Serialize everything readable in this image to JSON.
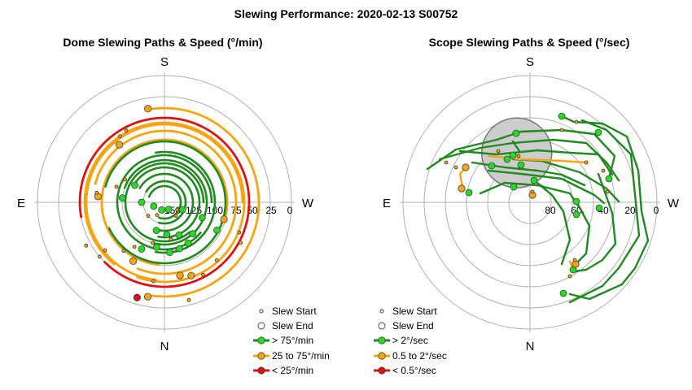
{
  "title": "Slewing Performance: 2020-02-13 S00752",
  "colors": {
    "fast": "#1f8a1f",
    "fast_fill": "#22dd22",
    "medium": "#f5a512",
    "medium_fill": "#f5a512",
    "slow": "#dd1111",
    "grid": "#b0b0b0",
    "blocked": "#cccccc"
  },
  "chart_data": [
    {
      "type": "polar-scatter-path",
      "title": "Dome Slewing Paths & Speed (°/min)",
      "compass": {
        "top": "S",
        "bottom": "N",
        "left": "E",
        "right": "W"
      },
      "radial_tick_labels": [
        "150",
        "125",
        "100",
        "75",
        "50",
        "25",
        "0"
      ],
      "radial_range": [
        150,
        0
      ],
      "legend": [
        {
          "symbol": "start",
          "label": "Slew Start"
        },
        {
          "symbol": "end",
          "label": "Slew End"
        },
        {
          "symbol": "fast",
          "label": "> 75°/min"
        },
        {
          "symbol": "medium",
          "label": "25 to 75°/min"
        },
        {
          "symbol": "slow",
          "label": "< 25°/min"
        }
      ],
      "paths": [
        {
          "speed": "medium",
          "r": 116,
          "from": 190,
          "to": 350,
          "dir": -1
        },
        {
          "speed": "medium",
          "r": 96,
          "from": 186,
          "to": 90,
          "dir": 1
        },
        {
          "speed": "medium",
          "r": 77,
          "from": 185,
          "to": 105,
          "dir": 1
        },
        {
          "speed": "medium",
          "r": 88,
          "from": 202,
          "to": 285,
          "dir": -1
        },
        {
          "speed": "slow",
          "r": 104,
          "from": 225,
          "to": 260,
          "dir": -1
        },
        {
          "speed": "medium",
          "r": 98,
          "from": 200,
          "to": 219,
          "dir": -1
        },
        {
          "speed": "fast",
          "r": 75,
          "from": 245,
          "to": 285,
          "dir": -1
        },
        {
          "speed": "fast",
          "r": 62,
          "from": 190,
          "to": 350,
          "dir": -1
        },
        {
          "speed": "fast",
          "r": 52,
          "from": 195,
          "to": 290,
          "dir": -1
        },
        {
          "speed": "fast",
          "r": 43,
          "from": 190,
          "to": 300,
          "dir": -1
        },
        {
          "speed": "fast",
          "r": 35,
          "from": 190,
          "to": 300,
          "dir": -1
        },
        {
          "speed": "fast",
          "r": 26,
          "from": 195,
          "to": 300,
          "dir": -1
        },
        {
          "speed": "fast",
          "r": 20,
          "from": 200,
          "to": 290,
          "dir": -1
        },
        {
          "speed": "fast",
          "r": 58,
          "from": 130,
          "to": 90,
          "dir": 1
        },
        {
          "speed": "fast",
          "r": 48,
          "from": 140,
          "to": 90,
          "dir": 1
        }
      ],
      "points": [
        {
          "r": 118,
          "a": 190,
          "kind": "end",
          "speed": "medium"
        },
        {
          "r": 124,
          "a": 166,
          "kind": "start"
        },
        {
          "r": 122,
          "a": 196,
          "kind": "end",
          "speed": "slow"
        },
        {
          "r": 117,
          "a": 350,
          "kind": "end",
          "speed": "medium"
        },
        {
          "r": 98,
          "a": 188,
          "kind": "start"
        },
        {
          "r": 92,
          "a": 168,
          "kind": "end",
          "speed": "medium"
        },
        {
          "r": 96,
          "a": 160,
          "kind": "end",
          "speed": "medium"
        },
        {
          "r": 101,
          "a": 152,
          "kind": "start"
        },
        {
          "r": 96,
          "a": 138,
          "kind": "start"
        },
        {
          "r": 106,
          "a": 118,
          "kind": "start"
        },
        {
          "r": 99,
          "a": 112,
          "kind": "start"
        },
        {
          "r": 76,
          "a": 106,
          "kind": "end",
          "speed": "medium"
        },
        {
          "r": 82,
          "a": 208,
          "kind": "end",
          "speed": "medium"
        },
        {
          "r": 78,
          "a": 220,
          "kind": "start"
        },
        {
          "r": 94,
          "a": 231,
          "kind": "start"
        },
        {
          "r": 104,
          "a": 230,
          "kind": "start"
        },
        {
          "r": 110,
          "a": 241,
          "kind": "start"
        },
        {
          "r": 82,
          "a": 275,
          "kind": "end",
          "speed": "medium"
        },
        {
          "r": 84,
          "a": 278,
          "kind": "start"
        },
        {
          "r": 90,
          "a": 322,
          "kind": "end",
          "speed": "medium"
        },
        {
          "r": 98,
          "a": 326,
          "kind": "start"
        },
        {
          "r": 100,
          "a": 332,
          "kind": "start"
        },
        {
          "r": 64,
          "a": 206,
          "kind": "end",
          "speed": "fast"
        },
        {
          "r": 56,
          "a": 190,
          "kind": "end",
          "speed": "fast"
        },
        {
          "r": 62,
          "a": 174,
          "kind": "end",
          "speed": "fast"
        },
        {
          "r": 60,
          "a": 162,
          "kind": "end",
          "speed": "fast"
        },
        {
          "r": 58,
          "a": 150,
          "kind": "end",
          "speed": "fast"
        },
        {
          "r": 52,
          "a": 138,
          "kind": "end",
          "speed": "fast"
        },
        {
          "r": 44,
          "a": 156,
          "kind": "end",
          "speed": "fast"
        },
        {
          "r": 40,
          "a": 176,
          "kind": "end",
          "speed": "fast"
        },
        {
          "r": 36,
          "a": 196,
          "kind": "end",
          "speed": "fast"
        },
        {
          "r": 73,
          "a": 118,
          "kind": "end",
          "speed": "fast"
        },
        {
          "r": 50,
          "a": 112,
          "kind": "end",
          "speed": "fast"
        },
        {
          "r": 24,
          "a": 112,
          "kind": "end",
          "speed": "fast"
        },
        {
          "r": 28,
          "a": 270,
          "kind": "end",
          "speed": "fast"
        },
        {
          "r": 52,
          "a": 276,
          "kind": "end",
          "speed": "fast"
        },
        {
          "r": 42,
          "a": 300,
          "kind": "end",
          "speed": "fast"
        },
        {
          "r": 10,
          "a": 200,
          "kind": "end",
          "speed": "fast"
        },
        {
          "r": 14,
          "a": 250,
          "kind": "end",
          "speed": "fast"
        },
        {
          "r": 10,
          "a": 150,
          "kind": "end",
          "speed": "fast"
        },
        {
          "r": 66,
          "a": 214,
          "kind": "start"
        },
        {
          "r": 52,
          "a": 196,
          "kind": "start"
        },
        {
          "r": 46,
          "a": 170,
          "kind": "start"
        },
        {
          "r": 26,
          "a": 230,
          "kind": "start"
        },
        {
          "r": 18,
          "a": 210,
          "kind": "start"
        },
        {
          "r": 56,
          "a": 300,
          "kind": "start"
        },
        {
          "r": 62,
          "a": 288,
          "kind": "start"
        },
        {
          "r": 22,
          "a": 140,
          "kind": "start"
        },
        {
          "r": 18,
          "a": 120,
          "kind": "start"
        }
      ]
    },
    {
      "type": "polar-scatter-path",
      "title": "Scope Slewing Paths & Speed (°/sec)",
      "compass": {
        "top": "S",
        "bottom": "N",
        "left": "E",
        "right": "W"
      },
      "radial_tick_labels": [
        "80",
        "60",
        "40",
        "20",
        "0"
      ],
      "radial_range": [
        90,
        0
      ],
      "blocked_region": {
        "r": 63,
        "a": 345,
        "radius": 43
      },
      "legend": [
        {
          "symbol": "start",
          "label": "Slew Start"
        },
        {
          "symbol": "end",
          "label": "Slew End"
        },
        {
          "symbol": "fast",
          "label": "> 2°/sec"
        },
        {
          "symbol": "medium",
          "label": "0.5 to 2°/sec"
        },
        {
          "symbol": "slow",
          "label": "< 0.5°/sec"
        }
      ],
      "paths": [
        {
          "speed": "fast",
          "pts": [
            [
              525,
              208
            ],
            [
              560,
              184
            ],
            [
              610,
              172
            ],
            [
              640,
              162
            ],
            [
              690,
              160
            ],
            [
              730,
              165
            ],
            [
              755,
              192
            ],
            [
              748,
              220
            ]
          ]
        },
        {
          "speed": "fast",
          "pts": [
            [
              540,
              196
            ],
            [
              590,
              182
            ],
            [
              630,
              176
            ],
            [
              680,
              172
            ],
            [
              720,
              176
            ],
            [
              745,
              200
            ],
            [
              760,
              222
            ]
          ]
        },
        {
          "speed": "fast",
          "pts": [
            [
              565,
              186
            ],
            [
              610,
              190
            ],
            [
              660,
              185
            ],
            [
              700,
              188
            ],
            [
              735,
              190
            ],
            [
              752,
              215
            ]
          ]
        },
        {
          "speed": "fast",
          "pts": [
            [
              580,
              200
            ],
            [
              620,
              206
            ],
            [
              660,
              210
            ],
            [
              690,
              215
            ],
            [
              718,
              228
            ]
          ]
        },
        {
          "speed": "fast",
          "pts": [
            [
              600,
              210
            ],
            [
              640,
              214
            ],
            [
              690,
              220
            ],
            [
              730,
              240
            ],
            [
              742,
              250
            ]
          ]
        },
        {
          "speed": "fast",
          "pts": [
            [
              590,
              238
            ],
            [
              620,
              225
            ],
            [
              660,
              228
            ],
            [
              700,
              238
            ],
            [
              716,
              262
            ]
          ]
        },
        {
          "speed": "fast",
          "pts": [
            [
              630,
              196
            ],
            [
              665,
              198
            ],
            [
              712,
              212
            ],
            [
              745,
              232
            ],
            [
              760,
              248
            ]
          ]
        },
        {
          "speed": "fast",
          "pts": [
            [
              690,
              143
            ],
            [
              705,
              150
            ],
            [
              740,
              152
            ],
            [
              770,
              168
            ],
            [
              784,
              210
            ],
            [
              788,
              260
            ],
            [
              796,
              296
            ],
            [
              780,
              330
            ],
            [
              764,
              350
            ],
            [
              724,
              368
            ],
            [
              700,
              362
            ]
          ]
        },
        {
          "speed": "fast",
          "pts": [
            [
              715,
              148
            ],
            [
              745,
              160
            ],
            [
              775,
              190
            ],
            [
              780,
              240
            ],
            [
              785,
              290
            ],
            [
              760,
              330
            ],
            [
              740,
              352
            ],
            [
              700,
              372
            ]
          ]
        },
        {
          "speed": "fast",
          "pts": [
            [
              735,
              214
            ],
            [
              752,
              262
            ],
            [
              756,
              300
            ],
            [
              740,
              320
            ],
            [
              720,
              332
            ],
            [
              706,
              334
            ]
          ]
        },
        {
          "speed": "fast",
          "pts": [
            [
              708,
              248
            ],
            [
              724,
              278
            ],
            [
              720,
              312
            ],
            [
              706,
              326
            ]
          ]
        },
        {
          "speed": "fast",
          "pts": [
            [
              656,
              222
            ],
            [
              678,
              240
            ],
            [
              692,
              260
            ],
            [
              700,
              295
            ],
            [
              690,
              325
            ]
          ]
        },
        {
          "speed": "fast",
          "pts": [
            [
              638,
              186
            ],
            [
              630,
              174
            ]
          ]
        },
        {
          "speed": "medium",
          "pts": [
            [
              572,
              206
            ],
            [
              565,
              214
            ],
            [
              568,
              230
            ]
          ]
        },
        {
          "speed": "medium",
          "pts": [
            [
              600,
              192
            ],
            [
              640,
              196
            ],
            [
              690,
              198
            ],
            [
              720,
              200
            ]
          ]
        },
        {
          "speed": "medium",
          "pts": [
            [
              700,
              322
            ],
            [
              706,
              334
            ]
          ]
        }
      ],
      "points": [
        {
          "x": 690,
          "y": 143,
          "kind": "end",
          "speed": "fast"
        },
        {
          "x": 634,
          "y": 164,
          "kind": "end",
          "speed": "fast"
        },
        {
          "x": 735,
          "y": 163,
          "kind": "end",
          "speed": "fast"
        },
        {
          "x": 630,
          "y": 191,
          "kind": "end",
          "speed": "fast"
        },
        {
          "x": 623,
          "y": 196,
          "kind": "end",
          "speed": "fast"
        },
        {
          "x": 604,
          "y": 204,
          "kind": "end",
          "speed": "fast"
        },
        {
          "x": 640,
          "y": 203,
          "kind": "end",
          "speed": "fast"
        },
        {
          "x": 656,
          "y": 222,
          "kind": "end",
          "speed": "fast"
        },
        {
          "x": 631,
          "y": 230,
          "kind": "end",
          "speed": "fast"
        },
        {
          "x": 748,
          "y": 220,
          "kind": "end",
          "speed": "fast"
        },
        {
          "x": 736,
          "y": 256,
          "kind": "end",
          "speed": "fast"
        },
        {
          "x": 708,
          "y": 248,
          "kind": "end",
          "speed": "fast"
        },
        {
          "x": 708,
          "y": 264,
          "kind": "end",
          "speed": "fast"
        },
        {
          "x": 576,
          "y": 237,
          "kind": "end",
          "speed": "fast"
        },
        {
          "x": 704,
          "y": 332,
          "kind": "end",
          "speed": "fast"
        },
        {
          "x": 692,
          "y": 361,
          "kind": "end",
          "speed": "fast"
        },
        {
          "x": 567,
          "y": 232,
          "kind": "end",
          "speed": "medium"
        },
        {
          "x": 572,
          "y": 206,
          "kind": "end",
          "speed": "medium"
        },
        {
          "x": 654,
          "y": 240,
          "kind": "end",
          "speed": "medium"
        },
        {
          "x": 707,
          "y": 325,
          "kind": "end",
          "speed": "medium"
        },
        {
          "x": 690,
          "y": 160,
          "kind": "start"
        },
        {
          "x": 708,
          "y": 150,
          "kind": "start"
        },
        {
          "x": 548,
          "y": 200,
          "kind": "start"
        },
        {
          "x": 560,
          "y": 206,
          "kind": "start"
        },
        {
          "x": 612,
          "y": 186,
          "kind": "start"
        },
        {
          "x": 637,
          "y": 192,
          "kind": "start"
        },
        {
          "x": 720,
          "y": 200,
          "kind": "start"
        },
        {
          "x": 741,
          "y": 210,
          "kind": "start"
        },
        {
          "x": 654,
          "y": 236,
          "kind": "start"
        },
        {
          "x": 746,
          "y": 236,
          "kind": "start"
        },
        {
          "x": 706,
          "y": 320,
          "kind": "start"
        },
        {
          "x": 700,
          "y": 340,
          "kind": "start"
        }
      ]
    }
  ]
}
